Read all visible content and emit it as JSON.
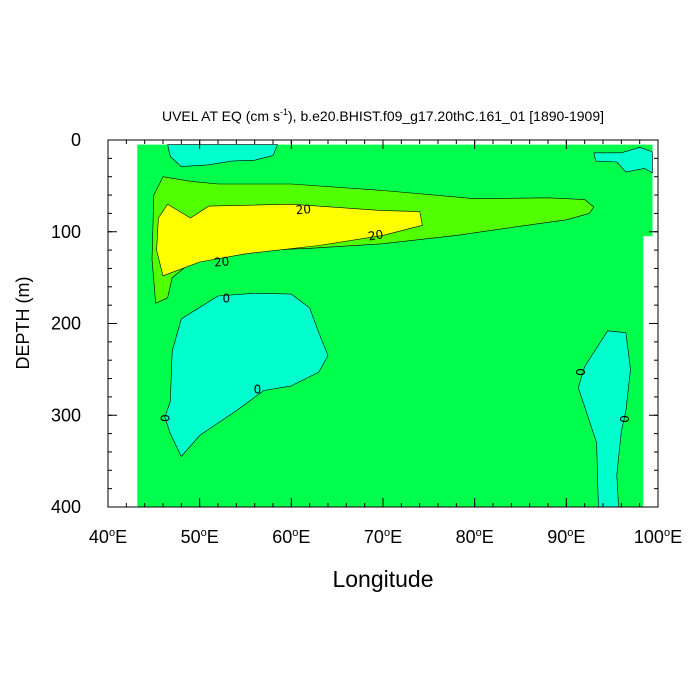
{
  "chart_data": {
    "type": "contour",
    "title_main": "UVEL AT EQ (cm s",
    "title_sup": "-1",
    "title_rest": "), b.e20.BHIST.f09_g17.20thC.161_01 [1890-1909]",
    "xlabel": "Longitude",
    "ylabel": "DEPTH (m)",
    "xlim": [
      40,
      100
    ],
    "ylim": [
      0,
      400
    ],
    "y_inverted": true,
    "x_ticks": [
      {
        "value": 40,
        "label": "40"
      },
      {
        "value": 50,
        "label": "50"
      },
      {
        "value": 60,
        "label": "60"
      },
      {
        "value": 70,
        "label": "70"
      },
      {
        "value": 80,
        "label": "80"
      },
      {
        "value": 90,
        "label": "90"
      },
      {
        "value": 100,
        "label": "100"
      }
    ],
    "x_tick_suffix_sup": "o",
    "x_tick_suffix": "E",
    "y_ticks": [
      {
        "value": 0,
        "label": "0"
      },
      {
        "value": 100,
        "label": "100"
      },
      {
        "value": 200,
        "label": "200"
      },
      {
        "value": 300,
        "label": "300"
      },
      {
        "value": 400,
        "label": "400"
      }
    ],
    "x_minor_step": 2,
    "y_minor_step": 20,
    "contour_levels": [
      0,
      10,
      20
    ],
    "fill_colors": {
      "below_0": "#00ffcc",
      "0_to_10": "#00ff4c",
      "10_to_20": "#52ff00",
      "above_20": "#ffff00"
    },
    "data_domain": {
      "lon_min": 43.2,
      "lon_max": 99.4,
      "lon_max_deep": 98.4,
      "depth_min": 5,
      "depth_max": 400,
      "depth_step_change": 105
    },
    "regions": [
      {
        "name": "jet-outer",
        "fill": "0_to_10",
        "fill_level": "10_to_20",
        "points": [
          [
            45.2,
            178
          ],
          [
            44.8,
            130
          ],
          [
            45.0,
            60
          ],
          [
            46.0,
            40
          ],
          [
            49.0,
            45
          ],
          [
            52.0,
            48
          ],
          [
            60.0,
            48
          ],
          [
            70.0,
            55
          ],
          [
            80.0,
            64
          ],
          [
            88.0,
            63
          ],
          [
            92.0,
            65
          ],
          [
            93.0,
            73
          ],
          [
            92.5,
            80
          ],
          [
            90.0,
            87
          ],
          [
            85.0,
            94
          ],
          [
            78.0,
            104
          ],
          [
            70.0,
            113
          ],
          [
            62.0,
            118
          ],
          [
            55.0,
            121
          ],
          [
            50.0,
            126
          ],
          [
            47.0,
            150
          ],
          [
            46.5,
            172
          ]
        ]
      },
      {
        "name": "jet-core",
        "fill": "above_20",
        "points": [
          [
            46.0,
            148
          ],
          [
            45.3,
            120
          ],
          [
            45.5,
            85
          ],
          [
            46.5,
            70
          ],
          [
            49.0,
            85
          ],
          [
            51.0,
            72
          ],
          [
            60.0,
            70
          ],
          [
            70.0,
            77
          ],
          [
            74.0,
            78
          ],
          [
            74.3,
            93
          ],
          [
            70.0,
            104
          ],
          [
            63.0,
            115
          ],
          [
            55.0,
            124
          ],
          [
            50.0,
            133
          ]
        ]
      },
      {
        "name": "surface-westward-west",
        "fill": "below_0",
        "points": [
          [
            46.5,
            5
          ],
          [
            46.8,
            18
          ],
          [
            48.0,
            29
          ],
          [
            51.0,
            27
          ],
          [
            53.5,
            23
          ],
          [
            56.0,
            22
          ],
          [
            58.0,
            17
          ],
          [
            58.5,
            5
          ]
        ]
      },
      {
        "name": "surface-westward-east",
        "fill": "below_0",
        "points": [
          [
            93.0,
            14
          ],
          [
            93.2,
            23
          ],
          [
            95.5,
            24
          ],
          [
            96.5,
            35
          ],
          [
            98.5,
            31
          ],
          [
            99.4,
            36
          ],
          [
            99.4,
            13
          ],
          [
            98.0,
            8
          ],
          [
            96.0,
            14
          ]
        ]
      },
      {
        "name": "subsurface-westward",
        "fill": "below_0",
        "points": [
          [
            46.8,
            320
          ],
          [
            46.2,
            302
          ],
          [
            46.8,
            285
          ],
          [
            47.0,
            230
          ],
          [
            48.0,
            195
          ],
          [
            52.0,
            170
          ],
          [
            56.0,
            167
          ],
          [
            60.0,
            168
          ],
          [
            62.0,
            183
          ],
          [
            63.0,
            210
          ],
          [
            64.0,
            235
          ],
          [
            63.0,
            253
          ],
          [
            60.0,
            268
          ],
          [
            57.0,
            273
          ],
          [
            54.0,
            295
          ],
          [
            50.0,
            322
          ],
          [
            48.0,
            345
          ]
        ]
      },
      {
        "name": "east-deep-westward",
        "fill": "below_0",
        "points": [
          [
            93.5,
            400
          ],
          [
            93.3,
            330
          ],
          [
            91.3,
            270
          ],
          [
            92.0,
            247
          ],
          [
            94.5,
            208
          ],
          [
            96.5,
            210
          ],
          [
            97.0,
            250
          ],
          [
            96.5,
            295
          ],
          [
            96.0,
            318
          ],
          [
            95.5,
            365
          ],
          [
            95.7,
            400
          ]
        ]
      }
    ],
    "contour_labels": [
      {
        "text": "20",
        "lon": 61.3,
        "depth": 76,
        "rot": -4
      },
      {
        "text": "20",
        "lon": 69.2,
        "depth": 104,
        "rot": -10
      },
      {
        "text": "20",
        "lon": 52.4,
        "depth": 133,
        "rot": -5
      },
      {
        "text": "0",
        "lon": 52.9,
        "depth": 173,
        "rot": 0
      },
      {
        "text": "0",
        "lon": 56.3,
        "depth": 272,
        "rot": 0
      },
      {
        "text": "0",
        "lon": 46.3,
        "depth": 303,
        "rot": -90
      },
      {
        "text": "0",
        "lon": 91.6,
        "depth": 253,
        "rot": -90
      },
      {
        "text": "0",
        "lon": 96.4,
        "depth": 304,
        "rot": -90
      }
    ]
  }
}
